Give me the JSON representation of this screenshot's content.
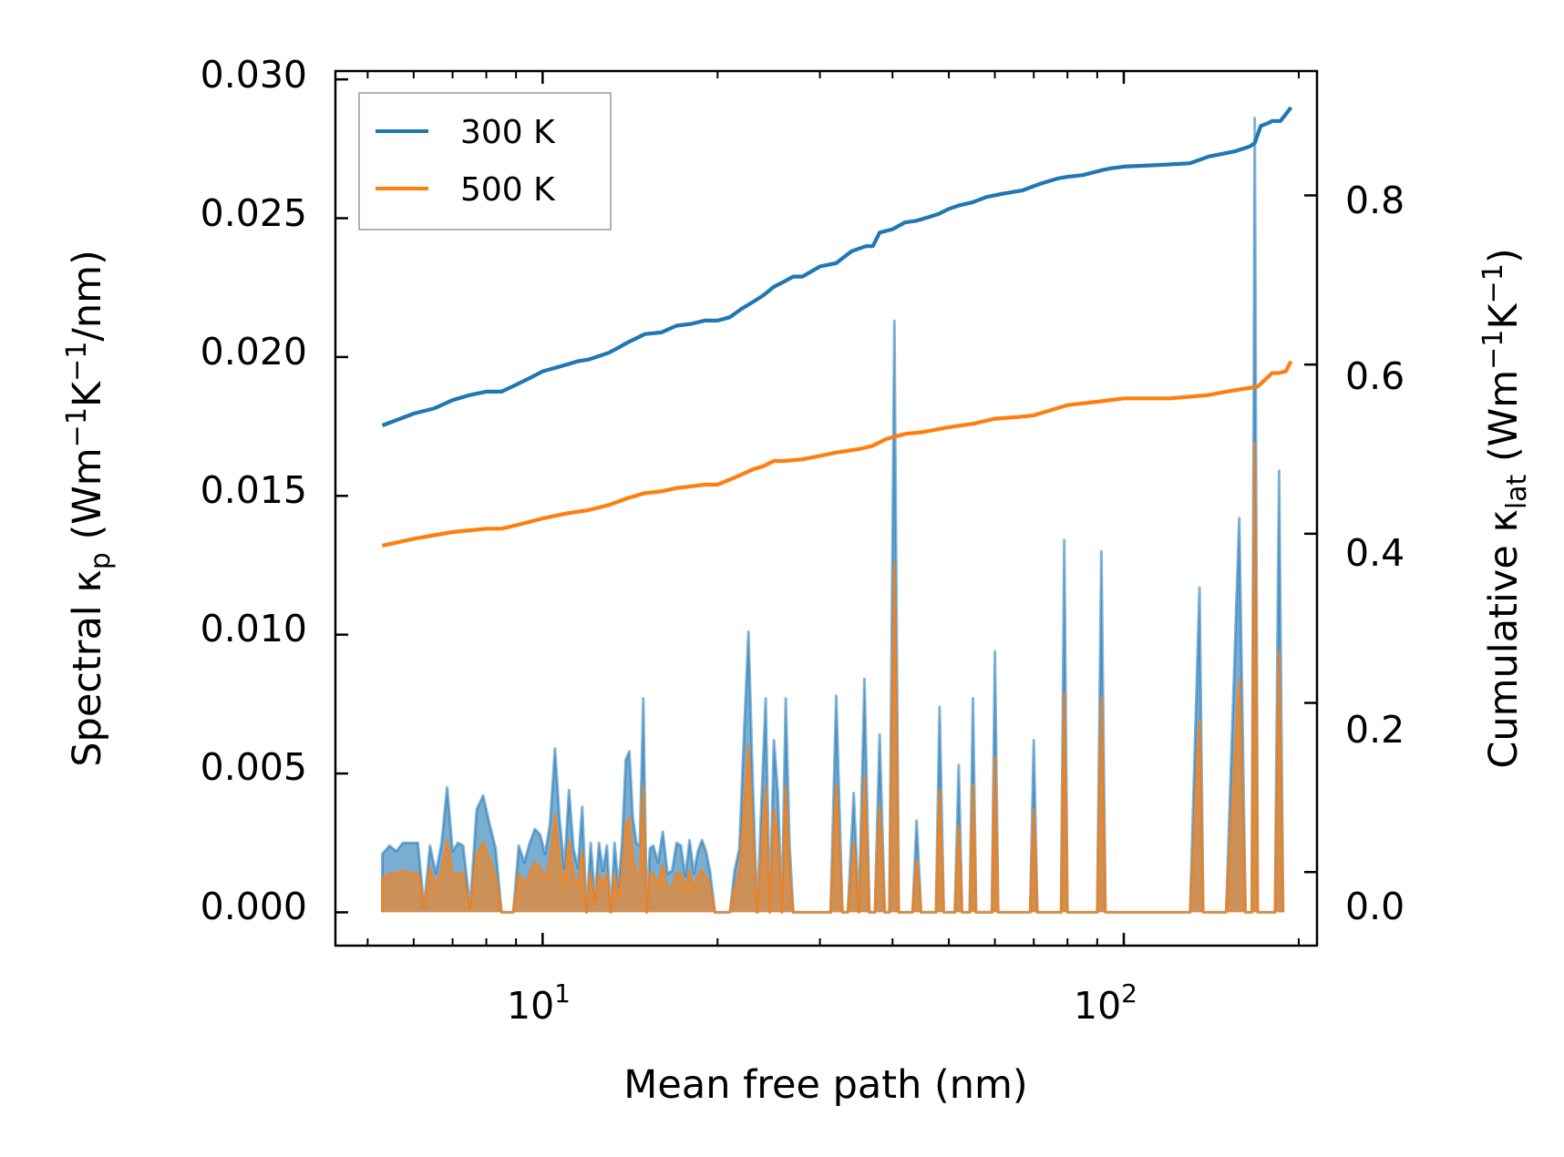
{
  "chart_data": {
    "type": "line",
    "title": "",
    "xlabel": "Mean free path (nm)",
    "xscale": "log",
    "xlim": [
      4.4,
      215
    ],
    "x_ticks": [
      {
        "value": 10,
        "base": "10",
        "exp": "1"
      },
      {
        "value": 100,
        "base": "10",
        "exp": "2"
      }
    ],
    "ylabel_left": {
      "main": "Spectral κ",
      "sub": "p",
      "units_open": " (Wm",
      "sup1": "−1",
      "mid": "K",
      "sup2": "−1",
      "close": "/nm)"
    },
    "ylabel_right": {
      "main": "Cumulative κ",
      "sub": "lat",
      "units_open": " (Wm",
      "sup1": "−1",
      "mid": "K",
      "sup2": "−1",
      "close": ")"
    },
    "ylim_left": [
      -0.0012,
      0.0303
    ],
    "ylim_right": [
      -0.087,
      0.947
    ],
    "left_ticks": [
      "0.000",
      "0.005",
      "0.010",
      "0.015",
      "0.020",
      "0.025",
      "0.030"
    ],
    "right_ticks": [
      "0.0",
      "0.2",
      "0.4",
      "0.6",
      "0.8"
    ],
    "legend": {
      "position": "top-left",
      "entries": [
        {
          "label": "300 K",
          "color": "#1f77b4"
        },
        {
          "label": "500 K",
          "color": "#ff7f0e"
        }
      ]
    },
    "colors": {
      "s300": "#1f77b4",
      "s500": "#ff7f0e",
      "fill300": "#1f77b4",
      "fill500": "#ff7f0e"
    },
    "spectral": {
      "x": [
        5.3,
        5.45,
        5.6,
        5.75,
        5.9,
        6.0,
        6.1,
        6.25,
        6.4,
        6.55,
        6.7,
        6.85,
        7.0,
        7.15,
        7.3,
        7.5,
        7.7,
        7.9,
        8.1,
        8.3,
        8.5,
        8.7,
        8.9,
        9.1,
        9.3,
        9.5,
        9.7,
        9.9,
        10.1,
        10.3,
        10.5,
        10.7,
        10.9,
        11.1,
        11.3,
        11.5,
        11.7,
        11.9,
        12.1,
        12.3,
        12.5,
        12.7,
        12.9,
        13.1,
        13.3,
        13.5,
        13.7,
        13.9,
        14.1,
        14.3,
        14.5,
        14.7,
        14.9,
        15.1,
        15.3,
        15.5,
        15.8,
        16.1,
        16.4,
        16.7,
        17.0,
        17.3,
        17.6,
        17.9,
        18.2,
        18.5,
        18.8,
        19.1,
        19.4,
        19.8,
        20.2,
        20.6,
        21.0,
        21.4,
        21.8,
        22.2,
        22.6,
        23.0,
        23.4,
        23.8,
        24.2,
        24.6,
        25.0,
        25.4,
        25.8,
        26.2,
        26.6,
        27.0,
        27.5,
        28.0,
        28.5,
        29.5,
        30.5,
        31.3,
        32.0,
        32.8,
        33.5,
        34.3,
        35.0,
        35.8,
        36.5,
        37.3,
        38.0,
        38.8,
        39.5,
        40.3,
        41.0,
        41.8,
        42.5,
        43.3,
        44.0,
        44.8,
        45.5,
        46.5,
        47.5,
        48.2,
        49.0,
        49.8,
        50.5,
        51.2,
        52.0,
        52.7,
        53.5,
        54.3,
        55.0,
        55.7,
        56.5,
        57.5,
        58.5,
        59.3,
        60.0,
        60.8,
        61.5,
        62.5,
        64.0,
        66.0,
        68.0,
        69.0,
        70.0,
        71.0,
        72.0,
        74.0,
        76.0,
        77.0,
        78.0,
        79.0,
        80.0,
        82.0,
        84.0,
        87.0,
        90.0,
        91.5,
        93.0,
        94.5,
        96.0,
        100.0,
        110.0,
        120.0,
        130.0,
        135.0,
        137.0,
        139.0,
        141.0,
        143.0,
        150.0,
        158.0,
        162.0,
        164.0,
        166.0,
        168.0,
        170.0,
        172.0,
        174.0,
        176.0,
        178.0,
        180.0,
        182.0,
        185.0,
        188.0,
        190.0,
        192.0,
        194.0
      ],
      "s300": [
        0.0021,
        0.0024,
        0.0022,
        0.0025,
        0.0025,
        0.0025,
        0.0025,
        0.0002,
        0.0024,
        0.0014,
        0.0025,
        0.0045,
        0.0022,
        0.0025,
        0.0024,
        0.0002,
        0.0037,
        0.0042,
        0.0032,
        0.0023,
        0.0,
        0.0,
        0.0,
        0.0024,
        0.0018,
        0.0025,
        0.003,
        0.0028,
        0.0021,
        0.0032,
        0.0059,
        0.0033,
        0.0016,
        0.0044,
        0.0023,
        0.0016,
        0.0038,
        0.0,
        0.0025,
        0.0005,
        0.0025,
        0.0015,
        0.0024,
        0.0,
        0.0025,
        0.0009,
        0.0025,
        0.0055,
        0.0058,
        0.0034,
        0.0025,
        0.0024,
        0.0077,
        0.0,
        0.0023,
        0.0024,
        0.0018,
        0.0029,
        0.0014,
        0.0015,
        0.0025,
        0.0024,
        0.0013,
        0.0026,
        0.0014,
        0.0022,
        0.0026,
        0.0022,
        0.0015,
        0.0,
        0.0,
        0.0,
        0.0,
        0.0015,
        0.0023,
        0.0063,
        0.0101,
        0.0046,
        0.0,
        0.004,
        0.0077,
        0.0,
        0.0062,
        0.0043,
        0.0,
        0.0077,
        0.0024,
        0.0,
        0.0,
        0.0,
        0.0,
        0.0,
        0.0,
        0.0,
        0.0078,
        0.0,
        0.0,
        0.0043,
        0.0,
        0.0084,
        0.0,
        0.0,
        0.0064,
        0.0,
        0.0,
        0.0213,
        0.0,
        0.0,
        0.0,
        0.0,
        0.0033,
        0.0,
        0.0,
        0.0,
        0.0,
        0.0074,
        0.0,
        0.0,
        0.0,
        0.0,
        0.0053,
        0.0,
        0.0,
        0.0,
        0.0077,
        0.0,
        0.0,
        0.0,
        0.0,
        0.0,
        0.0094,
        0.0,
        0.0,
        0.0,
        0.0,
        0.0,
        0.0,
        0.0,
        0.0062,
        0.0,
        0.0,
        0.0,
        0.0,
        0.0,
        0.0,
        0.0134,
        0.0,
        0.0,
        0.0,
        0.0,
        0.0,
        0.013,
        0.0,
        0.0,
        0.0,
        0.0,
        0.0,
        0.0,
        0.0,
        0.0117,
        0.0,
        0.0,
        0.0,
        0.0,
        0.0,
        0.0142,
        0.0,
        0.0,
        0.0,
        0.0286,
        0.0,
        0.0,
        0.0,
        0.0,
        0.0,
        0.0,
        0.0,
        0.0159,
        0.0
      ],
      "s500": [
        0.0012,
        0.0014,
        0.0014,
        0.0015,
        0.0014,
        0.0014,
        0.0014,
        0.0002,
        0.0016,
        0.0009,
        0.0015,
        0.0026,
        0.0013,
        0.0014,
        0.0014,
        0.0001,
        0.0021,
        0.0025,
        0.0019,
        0.0013,
        0.0,
        0.0,
        0.0,
        0.0014,
        0.001,
        0.0014,
        0.0018,
        0.0016,
        0.0012,
        0.0019,
        0.0035,
        0.0019,
        0.0009,
        0.0026,
        0.0013,
        0.0009,
        0.0022,
        0.0,
        0.0014,
        0.0003,
        0.0014,
        0.0009,
        0.0014,
        0.0,
        0.0014,
        0.0005,
        0.0014,
        0.0032,
        0.0034,
        0.002,
        0.0014,
        0.0014,
        0.0045,
        0.0,
        0.0014,
        0.0014,
        0.001,
        0.0017,
        0.0008,
        0.0009,
        0.0014,
        0.0014,
        0.0008,
        0.0015,
        0.0008,
        0.0013,
        0.0015,
        0.0013,
        0.0009,
        0.0,
        0.0,
        0.0,
        0.0,
        0.0009,
        0.0014,
        0.0037,
        0.006,
        0.0027,
        0.0,
        0.0023,
        0.0045,
        0.0,
        0.0037,
        0.0025,
        0.0,
        0.0045,
        0.0014,
        0.0,
        0.0,
        0.0,
        0.0,
        0.0,
        0.0,
        0.0,
        0.0046,
        0.0,
        0.0,
        0.0025,
        0.0,
        0.0049,
        0.0,
        0.0,
        0.0038,
        0.0,
        0.0,
        0.0126,
        0.0,
        0.0,
        0.0,
        0.0,
        0.0019,
        0.0,
        0.0,
        0.0,
        0.0,
        0.0044,
        0.0,
        0.0,
        0.0,
        0.0,
        0.0031,
        0.0,
        0.0,
        0.0,
        0.0046,
        0.0,
        0.0,
        0.0,
        0.0,
        0.0,
        0.0056,
        0.0,
        0.0,
        0.0,
        0.0,
        0.0,
        0.0,
        0.0,
        0.0037,
        0.0,
        0.0,
        0.0,
        0.0,
        0.0,
        0.0,
        0.0079,
        0.0,
        0.0,
        0.0,
        0.0,
        0.0,
        0.0077,
        0.0,
        0.0,
        0.0,
        0.0,
        0.0,
        0.0,
        0.0,
        0.0069,
        0.0,
        0.0,
        0.0,
        0.0,
        0.0,
        0.0084,
        0.0,
        0.0,
        0.0,
        0.0169,
        0.0,
        0.0,
        0.0,
        0.0,
        0.0,
        0.0,
        0.0,
        0.0094,
        0.0
      ]
    },
    "cumulative": {
      "x300": [
        5.3,
        6.0,
        6.5,
        7.0,
        7.5,
        8.0,
        8.5,
        9.0,
        9.5,
        10.0,
        10.5,
        11.0,
        11.5,
        12.0,
        12.5,
        13.0,
        13.5,
        14.0,
        15.0,
        16.0,
        17.0,
        18.0,
        19.0,
        20.0,
        21.0,
        22.0,
        23.0,
        24.0,
        25.0,
        26.0,
        27.0,
        28.0,
        30.0,
        32.0,
        34.0,
        36.0,
        37.0,
        38.0,
        40.0,
        41.0,
        42.0,
        44.0,
        46.0,
        48.0,
        50.0,
        52.0,
        55.0,
        58.0,
        62.0,
        67.0,
        72.0,
        77.0,
        80.0,
        85.0,
        92.0,
        95.0,
        100.0,
        115.0,
        130.0,
        140.0,
        145.0,
        155.0,
        165.0,
        168.0,
        172.0,
        178.0,
        180.0,
        186.0,
        190.0,
        194.0
      ],
      "c300": [
        0.528,
        0.542,
        0.548,
        0.558,
        0.564,
        0.568,
        0.568,
        0.576,
        0.584,
        0.592,
        0.596,
        0.6,
        0.604,
        0.606,
        0.61,
        0.614,
        0.62,
        0.626,
        0.636,
        0.638,
        0.646,
        0.648,
        0.652,
        0.652,
        0.656,
        0.666,
        0.674,
        0.682,
        0.692,
        0.698,
        0.704,
        0.704,
        0.716,
        0.72,
        0.734,
        0.74,
        0.74,
        0.756,
        0.76,
        0.764,
        0.768,
        0.77,
        0.774,
        0.778,
        0.784,
        0.788,
        0.792,
        0.798,
        0.802,
        0.806,
        0.814,
        0.82,
        0.822,
        0.824,
        0.83,
        0.832,
        0.834,
        0.836,
        0.838,
        0.846,
        0.848,
        0.852,
        0.858,
        0.862,
        0.882,
        0.886,
        0.888,
        0.888,
        0.896,
        0.904
      ],
      "x500": [
        5.3,
        6.0,
        7.0,
        7.5,
        8.0,
        8.5,
        9.0,
        10.0,
        11.0,
        12.0,
        13.0,
        14.0,
        15.0,
        16.0,
        17.0,
        18.0,
        19.0,
        20.0,
        21.0,
        22.0,
        23.0,
        24.0,
        25.0,
        26.0,
        28.0,
        30.0,
        32.0,
        35.0,
        37.0,
        39.0,
        40.0,
        42.0,
        45.0,
        50.0,
        55.0,
        60.0,
        66.0,
        70.0,
        80.0,
        90.0,
        100.0,
        120.0,
        140.0,
        150.0,
        170.0,
        180.0,
        185.0,
        190.0,
        194.0
      ],
      "c500": [
        0.386,
        0.394,
        0.402,
        0.404,
        0.406,
        0.406,
        0.41,
        0.418,
        0.424,
        0.428,
        0.434,
        0.442,
        0.448,
        0.45,
        0.454,
        0.456,
        0.458,
        0.458,
        0.464,
        0.47,
        0.476,
        0.48,
        0.486,
        0.486,
        0.488,
        0.492,
        0.496,
        0.5,
        0.504,
        0.512,
        0.514,
        0.518,
        0.52,
        0.526,
        0.53,
        0.536,
        0.538,
        0.54,
        0.552,
        0.556,
        0.56,
        0.56,
        0.564,
        0.568,
        0.574,
        0.59,
        0.59,
        0.592,
        0.604
      ]
    }
  }
}
